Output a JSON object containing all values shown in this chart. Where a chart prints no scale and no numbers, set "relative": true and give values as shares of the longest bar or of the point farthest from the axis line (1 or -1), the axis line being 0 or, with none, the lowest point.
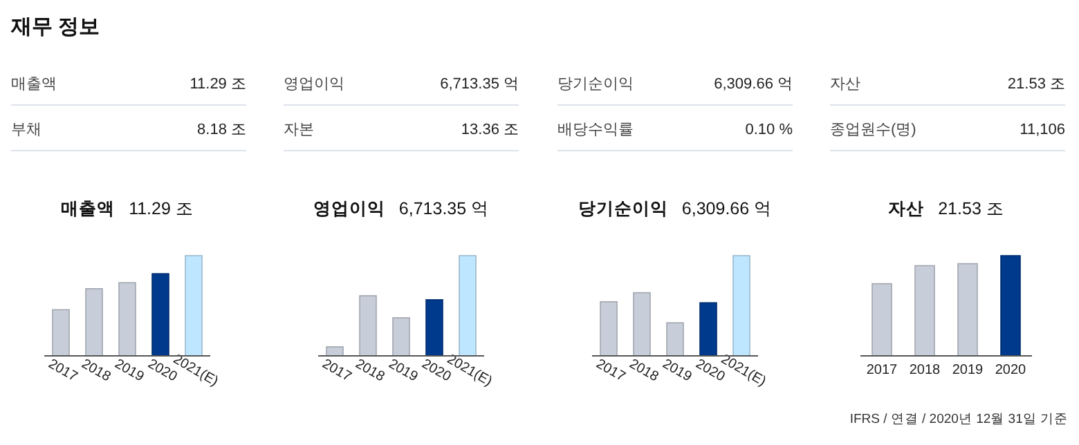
{
  "chart_data": [
    {
      "type": "other",
      "title": "재무 정보",
      "annotations": [
        "매출액",
        "11.29 조",
        "영업이익",
        "6,713.35 억",
        "당기순이익",
        "6,309.66 억",
        "자산",
        "21.53 조",
        "부채",
        "8.18 조",
        "자본",
        "13.36 조",
        "배당수익률",
        "0.10 %",
        "종업원수(명)",
        "11,106",
        "IFRS / 연결 / 2020년 12월 31일 기준"
      ]
    },
    {
      "type": "bar",
      "title": "매출액",
      "subtitle": "11.29 조",
      "relative": true,
      "categories": [
        "2017",
        "2018",
        "2019",
        "2020",
        "2021(E)"
      ],
      "values": [
        0.46,
        0.67,
        0.73,
        0.82,
        1
      ],
      "colors": [
        "#c8ced9",
        "#c8ced9",
        "#c8ced9",
        "#003a8c",
        "#bfe6ff"
      ]
    },
    {
      "type": "bar",
      "title": "영업이익",
      "subtitle": "6,713.35 억",
      "relative": true,
      "categories": [
        "2017",
        "2018",
        "2019",
        "2020",
        "2021(E)"
      ],
      "values": [
        0.09,
        0.6,
        0.38,
        0.56,
        1
      ],
      "colors": [
        "#c8ced9",
        "#c8ced9",
        "#c8ced9",
        "#003a8c",
        "#bfe6ff"
      ]
    },
    {
      "type": "bar",
      "title": "당기순이익",
      "subtitle": "6,309.66 억",
      "relative": true,
      "categories": [
        "2017",
        "2018",
        "2019",
        "2020",
        "2021(E)"
      ],
      "values": [
        0.54,
        0.63,
        0.33,
        0.53,
        1
      ],
      "colors": [
        "#c8ced9",
        "#c8ced9",
        "#c8ced9",
        "#003a8c",
        "#bfe6ff"
      ]
    },
    {
      "type": "bar",
      "title": "자산",
      "subtitle": "21.53 조",
      "relative": true,
      "categories": [
        "2017",
        "2018",
        "2019",
        "2020"
      ],
      "values": [
        0.72,
        0.9,
        0.92,
        1
      ],
      "colors": [
        "#c8ced9",
        "#c8ced9",
        "#c8ced9",
        "#003a8c"
      ]
    }
  ]
}
